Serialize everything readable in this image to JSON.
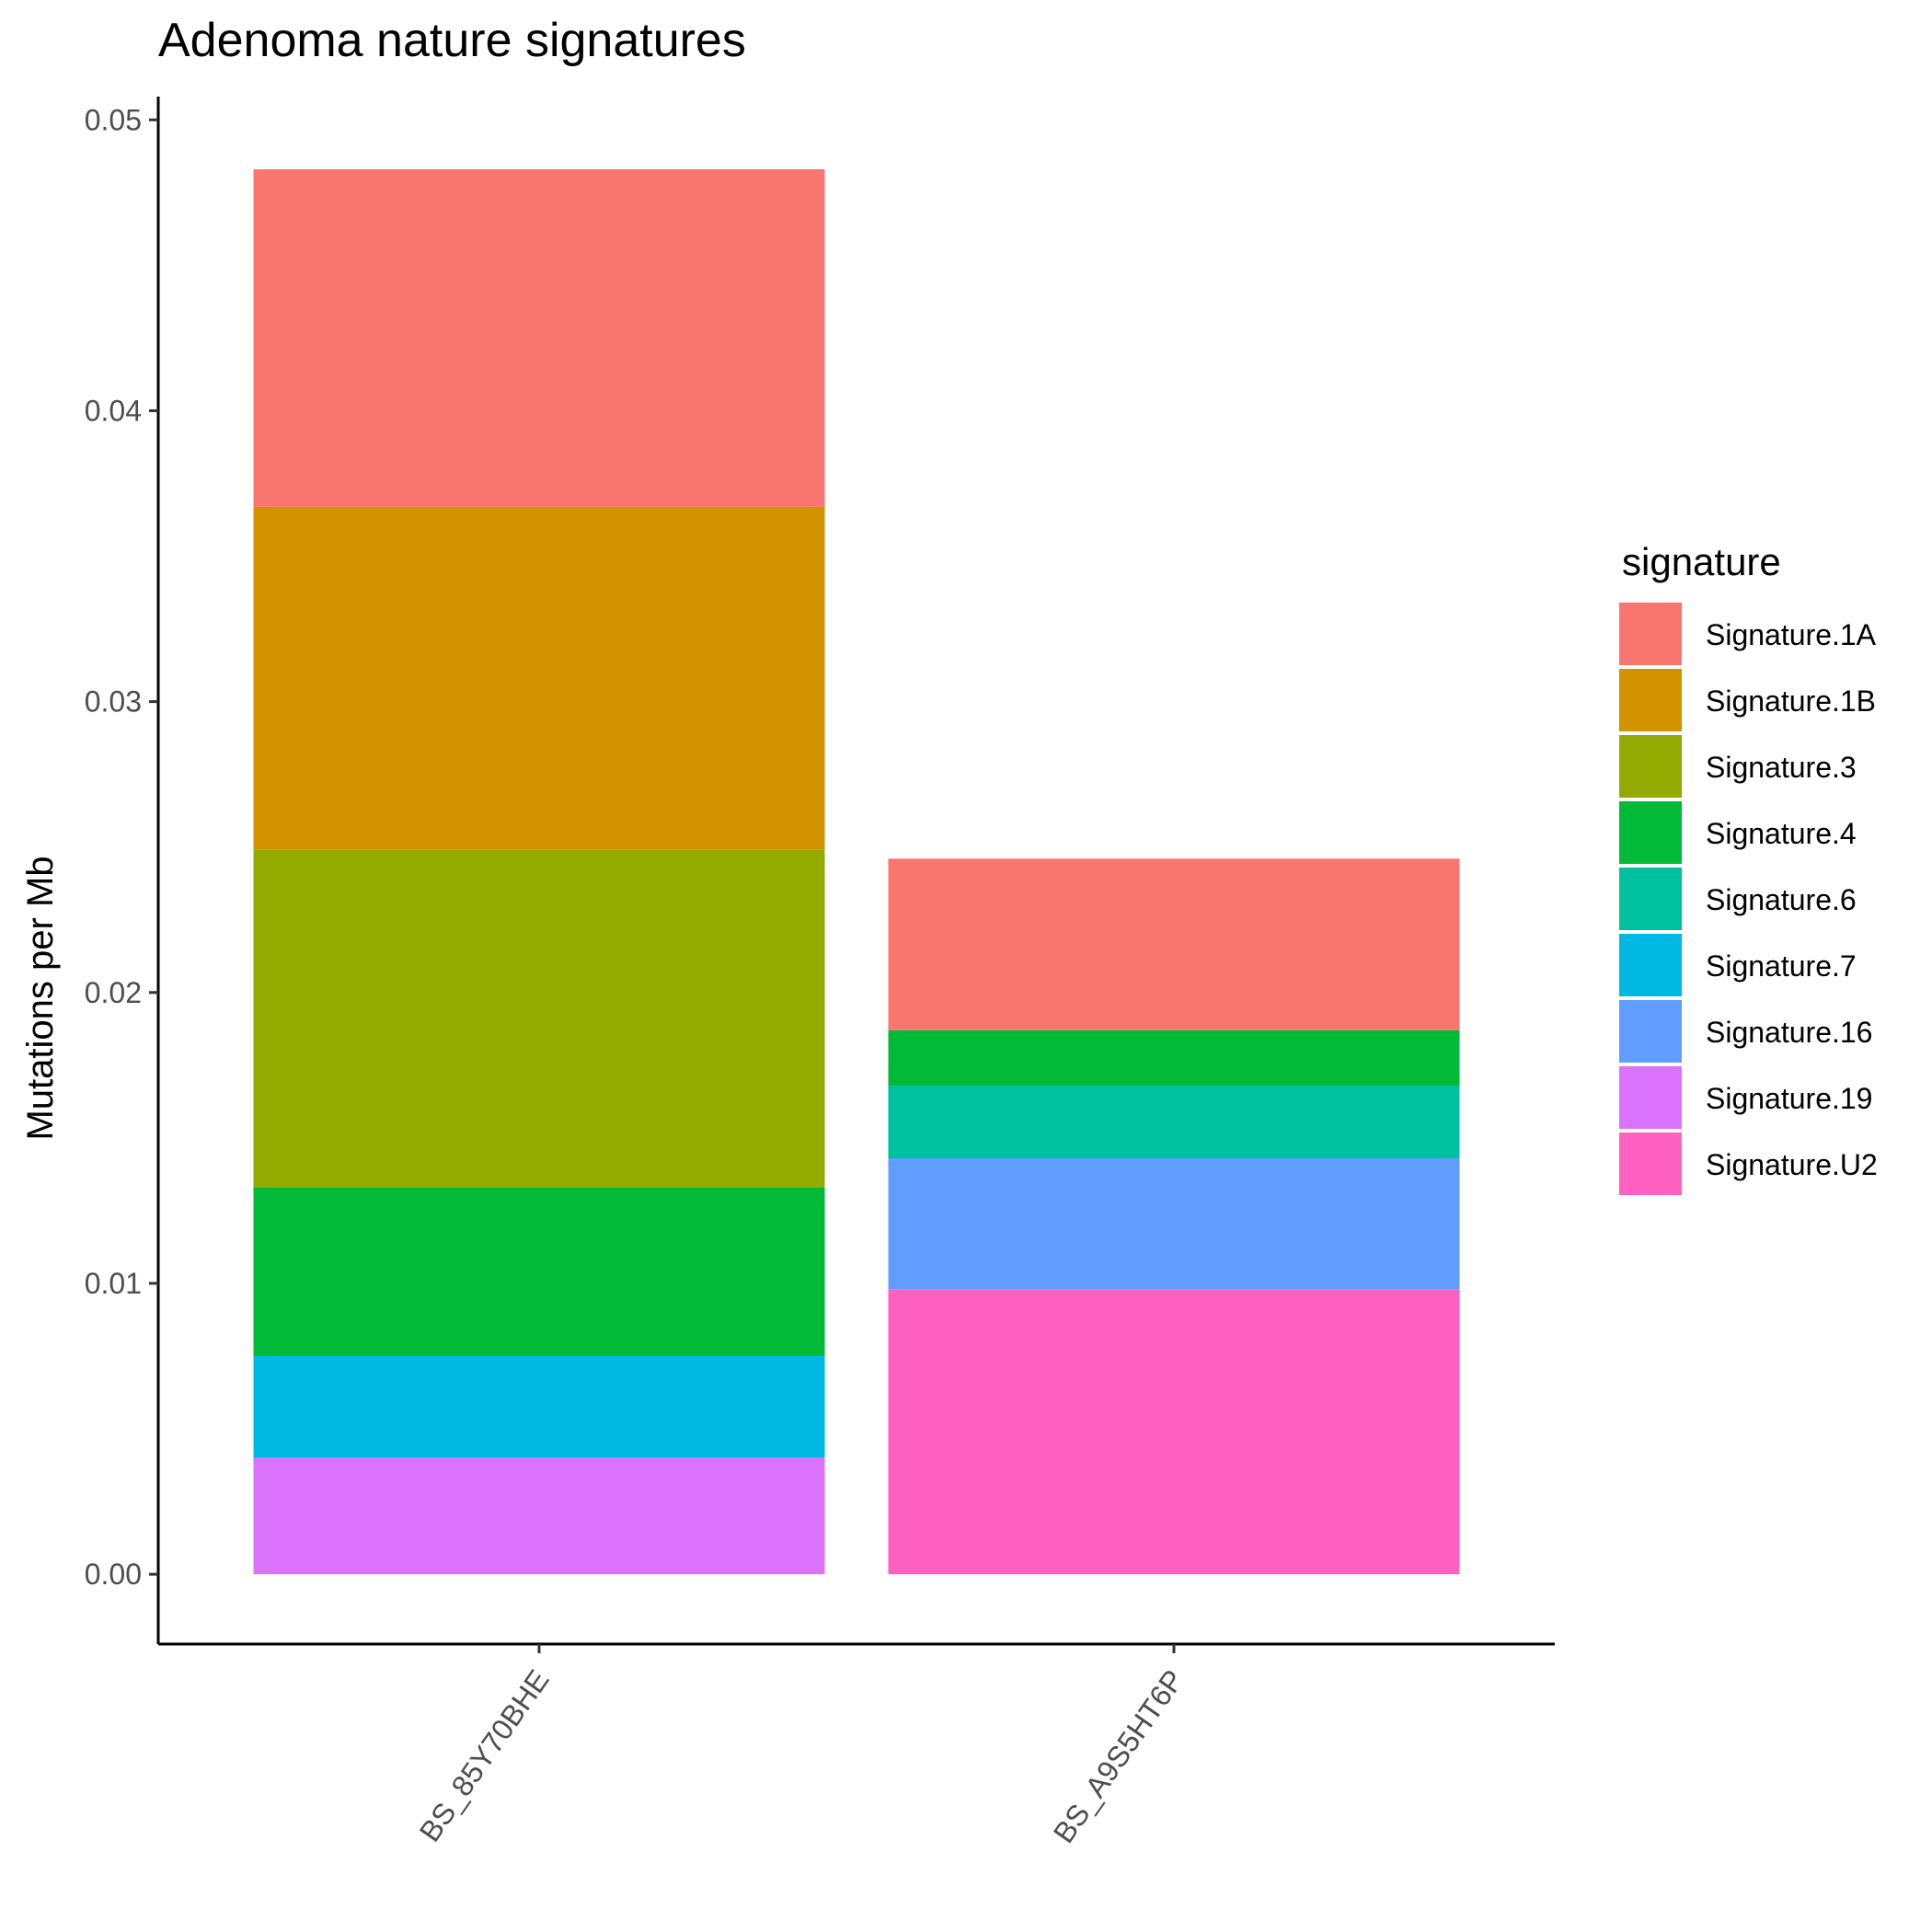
{
  "chart_data": {
    "type": "bar",
    "stacked": true,
    "title": "Adenoma nature signatures",
    "xlabel": "",
    "ylabel": "Mutations per Mb",
    "ylim": [
      -0.0024,
      0.0508
    ],
    "yticks": [
      "0.00",
      "0.01",
      "0.02",
      "0.03",
      "0.04",
      "0.05"
    ],
    "ytick_values": [
      0,
      0.01,
      0.02,
      0.03,
      0.04,
      0.05
    ],
    "categories": [
      "BS_85Y70BHE",
      "BS_A9S5HT6P"
    ],
    "grid": false,
    "legend": {
      "title": "signature",
      "position": "right"
    },
    "series": [
      {
        "name": "Signature.1A",
        "color": "#F8766D",
        "values": [
          0.0116,
          0.0059
        ]
      },
      {
        "name": "Signature.1B",
        "color": "#D39200",
        "values": [
          0.0118,
          0
        ]
      },
      {
        "name": "Signature.3",
        "color": "#93AA00",
        "values": [
          0.0116,
          0
        ]
      },
      {
        "name": "Signature.4",
        "color": "#00BA38",
        "values": [
          0.0058,
          0.0019
        ]
      },
      {
        "name": "Signature.6",
        "color": "#00C19F",
        "values": [
          0,
          0.0025
        ]
      },
      {
        "name": "Signature.7",
        "color": "#00B9E3",
        "values": [
          0.0035,
          0
        ]
      },
      {
        "name": "Signature.16",
        "color": "#619CFF",
        "values": [
          0,
          0.0045
        ]
      },
      {
        "name": "Signature.19",
        "color": "#DB72FB",
        "values": [
          0.004,
          0
        ]
      },
      {
        "name": "Signature.U2",
        "color": "#FF61C3",
        "values": [
          0,
          0.0098
        ]
      }
    ]
  }
}
